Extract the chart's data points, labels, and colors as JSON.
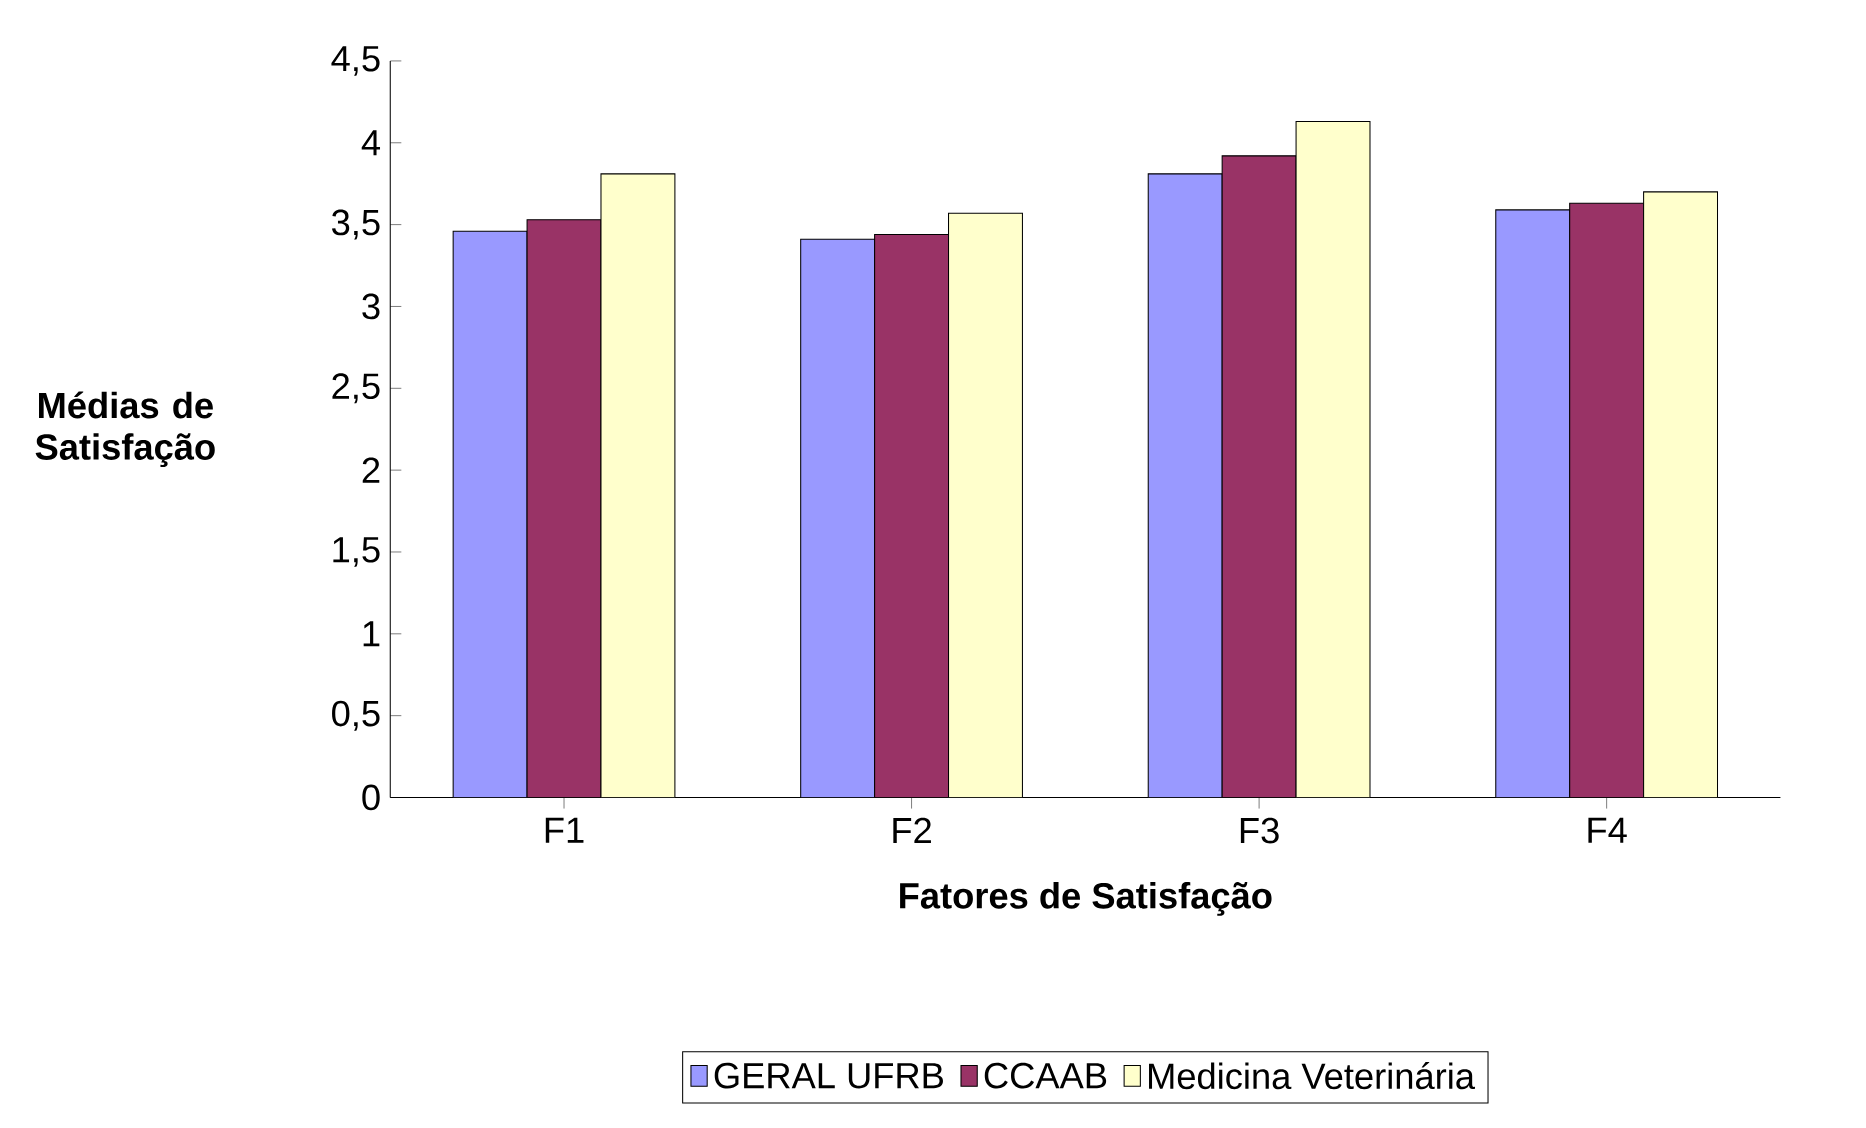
{
  "chart_data": {
    "type": "bar",
    "xlabel": "Fatores de Satisfação",
    "ylabel": "Médias de Satisfação",
    "categories": [
      "F1",
      "F2",
      "F3",
      "F4"
    ],
    "series": [
      {
        "name": "GERAL UFRB",
        "color": "#9999ff",
        "values": [
          3.46,
          3.41,
          3.81,
          3.59
        ]
      },
      {
        "name": "CCAAB",
        "color": "#993366",
        "values": [
          3.53,
          3.44,
          3.92,
          3.63
        ]
      },
      {
        "name": "Medicina Veterinária",
        "color": "#ffffcc",
        "values": [
          3.81,
          3.57,
          4.13,
          3.7
        ]
      }
    ],
    "ylim": [
      0,
      4.5
    ],
    "yticks": [
      0,
      {
        "value": 0.5,
        "label": "0,5"
      },
      1,
      {
        "value": 1.5,
        "label": "1,5"
      },
      2,
      {
        "value": 2.5,
        "label": "2,5"
      },
      3,
      {
        "value": 3.5,
        "label": "3,5"
      },
      4,
      {
        "value": 4.5,
        "label": "4,5"
      }
    ],
    "legend": "bottom"
  }
}
